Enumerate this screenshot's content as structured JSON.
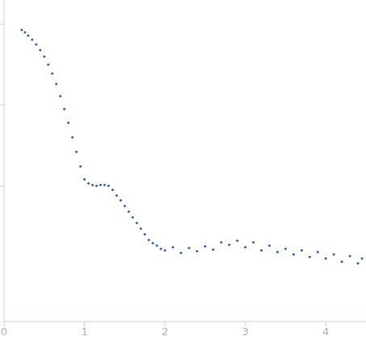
{
  "chart_data": {
    "type": "scatter",
    "color": "#3a64b8",
    "marker": "circle",
    "tick_labels": "x",
    "xlim": [
      0,
      4.5
    ],
    "xticks": [
      0,
      1,
      2,
      3,
      4
    ],
    "ylim": [
      -0.68,
      3.3
    ],
    "yticks": [
      1,
      2,
      3
    ],
    "x": [
      0.22,
      0.26,
      0.3,
      0.35,
      0.4,
      0.45,
      0.5,
      0.55,
      0.6,
      0.65,
      0.7,
      0.75,
      0.8,
      0.85,
      0.9,
      0.95,
      1.0,
      1.05,
      1.1,
      1.15,
      1.2,
      1.25,
      1.3,
      1.35,
      1.4,
      1.45,
      1.5,
      1.55,
      1.6,
      1.65,
      1.7,
      1.75,
      1.8,
      1.85,
      1.9,
      1.95,
      2.0,
      2.1,
      2.2,
      2.3,
      2.4,
      2.5,
      2.6,
      2.7,
      2.8,
      2.9,
      3.0,
      3.1,
      3.2,
      3.3,
      3.4,
      3.5,
      3.6,
      3.7,
      3.8,
      3.9,
      4.0,
      4.1,
      4.2,
      4.3,
      4.4,
      4.45
    ],
    "values": [
      2.93,
      2.9,
      2.86,
      2.81,
      2.75,
      2.68,
      2.6,
      2.5,
      2.39,
      2.26,
      2.11,
      1.95,
      1.78,
      1.6,
      1.42,
      1.24,
      1.08,
      1.03,
      1.01,
      1.0,
      1.01,
      1.01,
      1.0,
      0.95,
      0.88,
      0.82,
      0.75,
      0.68,
      0.61,
      0.54,
      0.47,
      0.4,
      0.33,
      0.29,
      0.26,
      0.22,
      0.2,
      0.24,
      0.17,
      0.23,
      0.19,
      0.25,
      0.21,
      0.3,
      0.27,
      0.32,
      0.24,
      0.3,
      0.2,
      0.26,
      0.18,
      0.22,
      0.15,
      0.2,
      0.12,
      0.18,
      0.1,
      0.15,
      0.06,
      0.13,
      0.04,
      0.1
    ]
  }
}
